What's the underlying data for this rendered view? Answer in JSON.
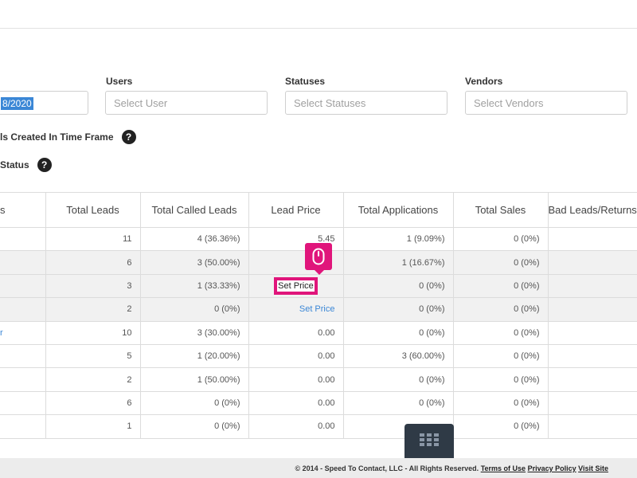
{
  "filters": {
    "date_value": "8/2020",
    "users_label": "Users",
    "users_placeholder": "Select User",
    "statuses_label": "Statuses",
    "statuses_placeholder": "Select Statuses",
    "vendors_label": "Vendors",
    "vendors_placeholder": "Select Vendors"
  },
  "options": {
    "created_label": "ls Created In Time Frame",
    "status_label": "Status",
    "help_glyph": "?"
  },
  "table": {
    "headers": [
      "s",
      "Total Leads",
      "Total Called Leads",
      "Lead Price",
      "Total Applications",
      "Total Sales",
      "Bad Leads/Returns"
    ],
    "rows": [
      {
        "name": "",
        "leads": "11",
        "called": "4 (36.36%)",
        "price": "5.45",
        "apps": "1 (9.09%)",
        "sales": "0 (0%)",
        "bad": ""
      },
      {
        "name": "",
        "leads": "6",
        "called": "3 (50.00%)",
        "price": "",
        "apps": "1 (16.67%)",
        "sales": "0 (0%)",
        "bad": ""
      },
      {
        "name": "",
        "leads": "3",
        "called": "1 (33.33%)",
        "price": "Set Price",
        "apps": "0 (0%)",
        "sales": "0 (0%)",
        "bad": ""
      },
      {
        "name": "",
        "leads": "2",
        "called": "0 (0%)",
        "price": "Set Price",
        "apps": "0 (0%)",
        "sales": "0 (0%)",
        "bad": ""
      },
      {
        "name": "r",
        "leads": "10",
        "called": "3 (30.00%)",
        "price": "0.00",
        "apps": "0 (0%)",
        "sales": "0 (0%)",
        "bad": ""
      },
      {
        "name": "",
        "leads": "5",
        "called": "1 (20.00%)",
        "price": "0.00",
        "apps": "3 (60.00%)",
        "sales": "0 (0%)",
        "bad": ""
      },
      {
        "name": "",
        "leads": "2",
        "called": "1 (50.00%)",
        "price": "0.00",
        "apps": "0 (0%)",
        "sales": "0 (0%)",
        "bad": ""
      },
      {
        "name": "",
        "leads": "6",
        "called": "0 (0%)",
        "price": "0.00",
        "apps": "0 (0%)",
        "sales": "0 (0%)",
        "bad": ""
      },
      {
        "name": "",
        "leads": "1",
        "called": "0 (0%)",
        "price": "0.00",
        "apps": "",
        "sales": "0 (0%)",
        "bad": ""
      }
    ]
  },
  "overlay": {
    "icon": "mouse-icon",
    "accent": "#e0157b",
    "launcher_icon": "grid-icon"
  },
  "footer": {
    "copyright": "© 2014 - Speed To Contact, LLC - All Rights Reserved.",
    "terms": "Terms of Use",
    "privacy": "Privacy Policy",
    "visit": "Visit Site"
  }
}
